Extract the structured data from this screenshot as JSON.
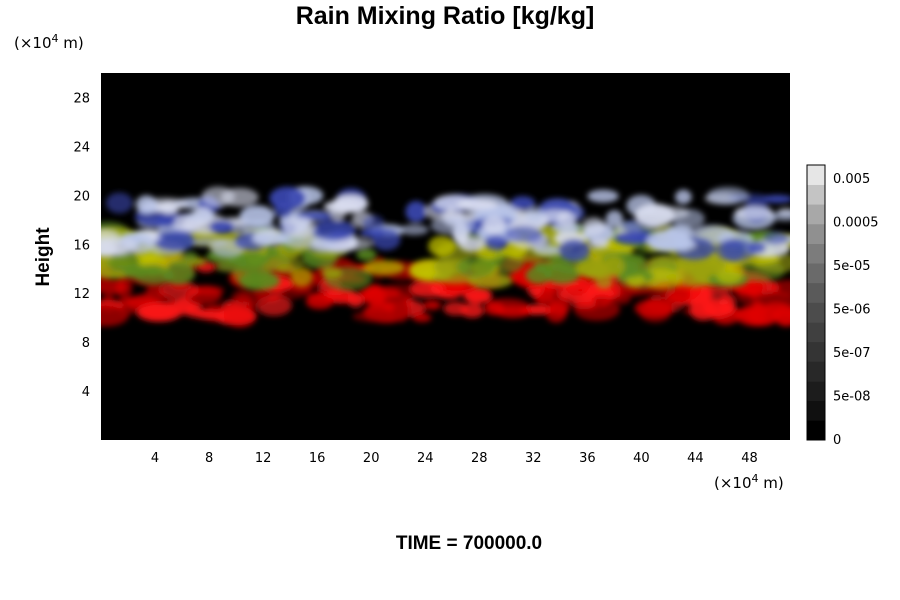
{
  "chart_data": {
    "type": "heatmap",
    "title": "Rain Mixing Ratio [kg/kg]",
    "ylabel": "Height",
    "xlabel": "",
    "x_unit_prefix": "(×10",
    "x_unit_exp": "4",
    "x_unit_suffix": " m)",
    "y_unit_prefix": "(×10",
    "y_unit_exp": "4",
    "y_unit_suffix": " m)",
    "time_label": "TIME = 700000.0",
    "xlim": [
      0,
      51
    ],
    "ylim": [
      0,
      30
    ],
    "x_ticks": [
      4,
      8,
      12,
      16,
      20,
      24,
      28,
      32,
      36,
      40,
      44,
      48
    ],
    "y_ticks": [
      4,
      8,
      12,
      16,
      20,
      24,
      28
    ],
    "colorbar": {
      "tick_labels": [
        "0.005",
        "0.0005",
        "5e-05",
        "5e-06",
        "5e-07",
        "5e-08",
        "0"
      ],
      "levels": 14,
      "colors": [
        "#000000",
        "#101010",
        "#1c1c1c",
        "#282828",
        "#343434",
        "#404040",
        "#4c4c4c",
        "#5a5a5a",
        "#6a6a6a",
        "#7c7c7c",
        "#909090",
        "#a8a8a8",
        "#c4c4c4",
        "#e6e6e6"
      ]
    },
    "cloud_layers": [
      {
        "name": "white-blue",
        "colors": [
          "#b8c4e8",
          "#d8dcee",
          "#3a48b0"
        ],
        "y_range": [
          15.5,
          20
        ]
      },
      {
        "name": "yellow",
        "colors": [
          "#c0c000",
          "#9aa010",
          "#5a8a20"
        ],
        "y_range": [
          13,
          17
        ]
      },
      {
        "name": "red",
        "colors": [
          "#e00000",
          "#ff1a1a",
          "#a00000"
        ],
        "y_range": [
          10,
          14.5
        ]
      }
    ],
    "background_color": "#000000"
  }
}
